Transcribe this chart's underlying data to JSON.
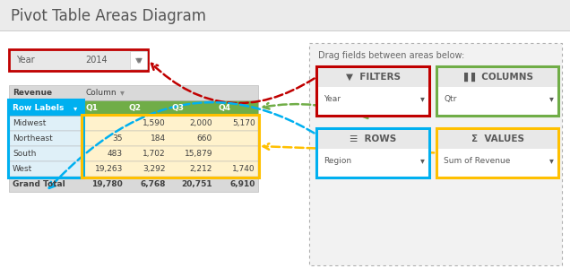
{
  "title": "Pivot Table Areas Diagram",
  "bg_color": "#ebebeb",
  "white": "#ffffff",
  "drag_text": "Drag fields between areas below:",
  "filter_label": "▼  FILTERS",
  "filter_color": "#c00000",
  "columns_label": "▐▐▐  COLUMNS",
  "columns_color": "#70ad47",
  "rows_label": "☰  ROWS",
  "rows_color": "#00b0f0",
  "values_label": "Σ  VALUES",
  "values_color": "#ffc000",
  "col_labels": [
    "Row Labels",
    "Q1",
    "Q2",
    "Q3",
    "Q4"
  ],
  "rows": [
    [
      "Midwest",
      "",
      "1,590",
      "2,000",
      "5,170"
    ],
    [
      "Northeast",
      "35",
      "184",
      "660",
      ""
    ],
    [
      "South",
      "483",
      "1,702",
      "15,879",
      ""
    ],
    [
      "West",
      "19,263",
      "3,292",
      "2,212",
      "1,740"
    ]
  ],
  "grand_total": [
    "Grand Total",
    "19,780",
    "6,768",
    "20,751",
    "6,910"
  ],
  "red_color": "#c00000",
  "green_color": "#70ad47",
  "blue_color": "#00b0f0",
  "yellow_color": "#ffc000",
  "gray_text": "#595959",
  "dark_text": "#404040"
}
